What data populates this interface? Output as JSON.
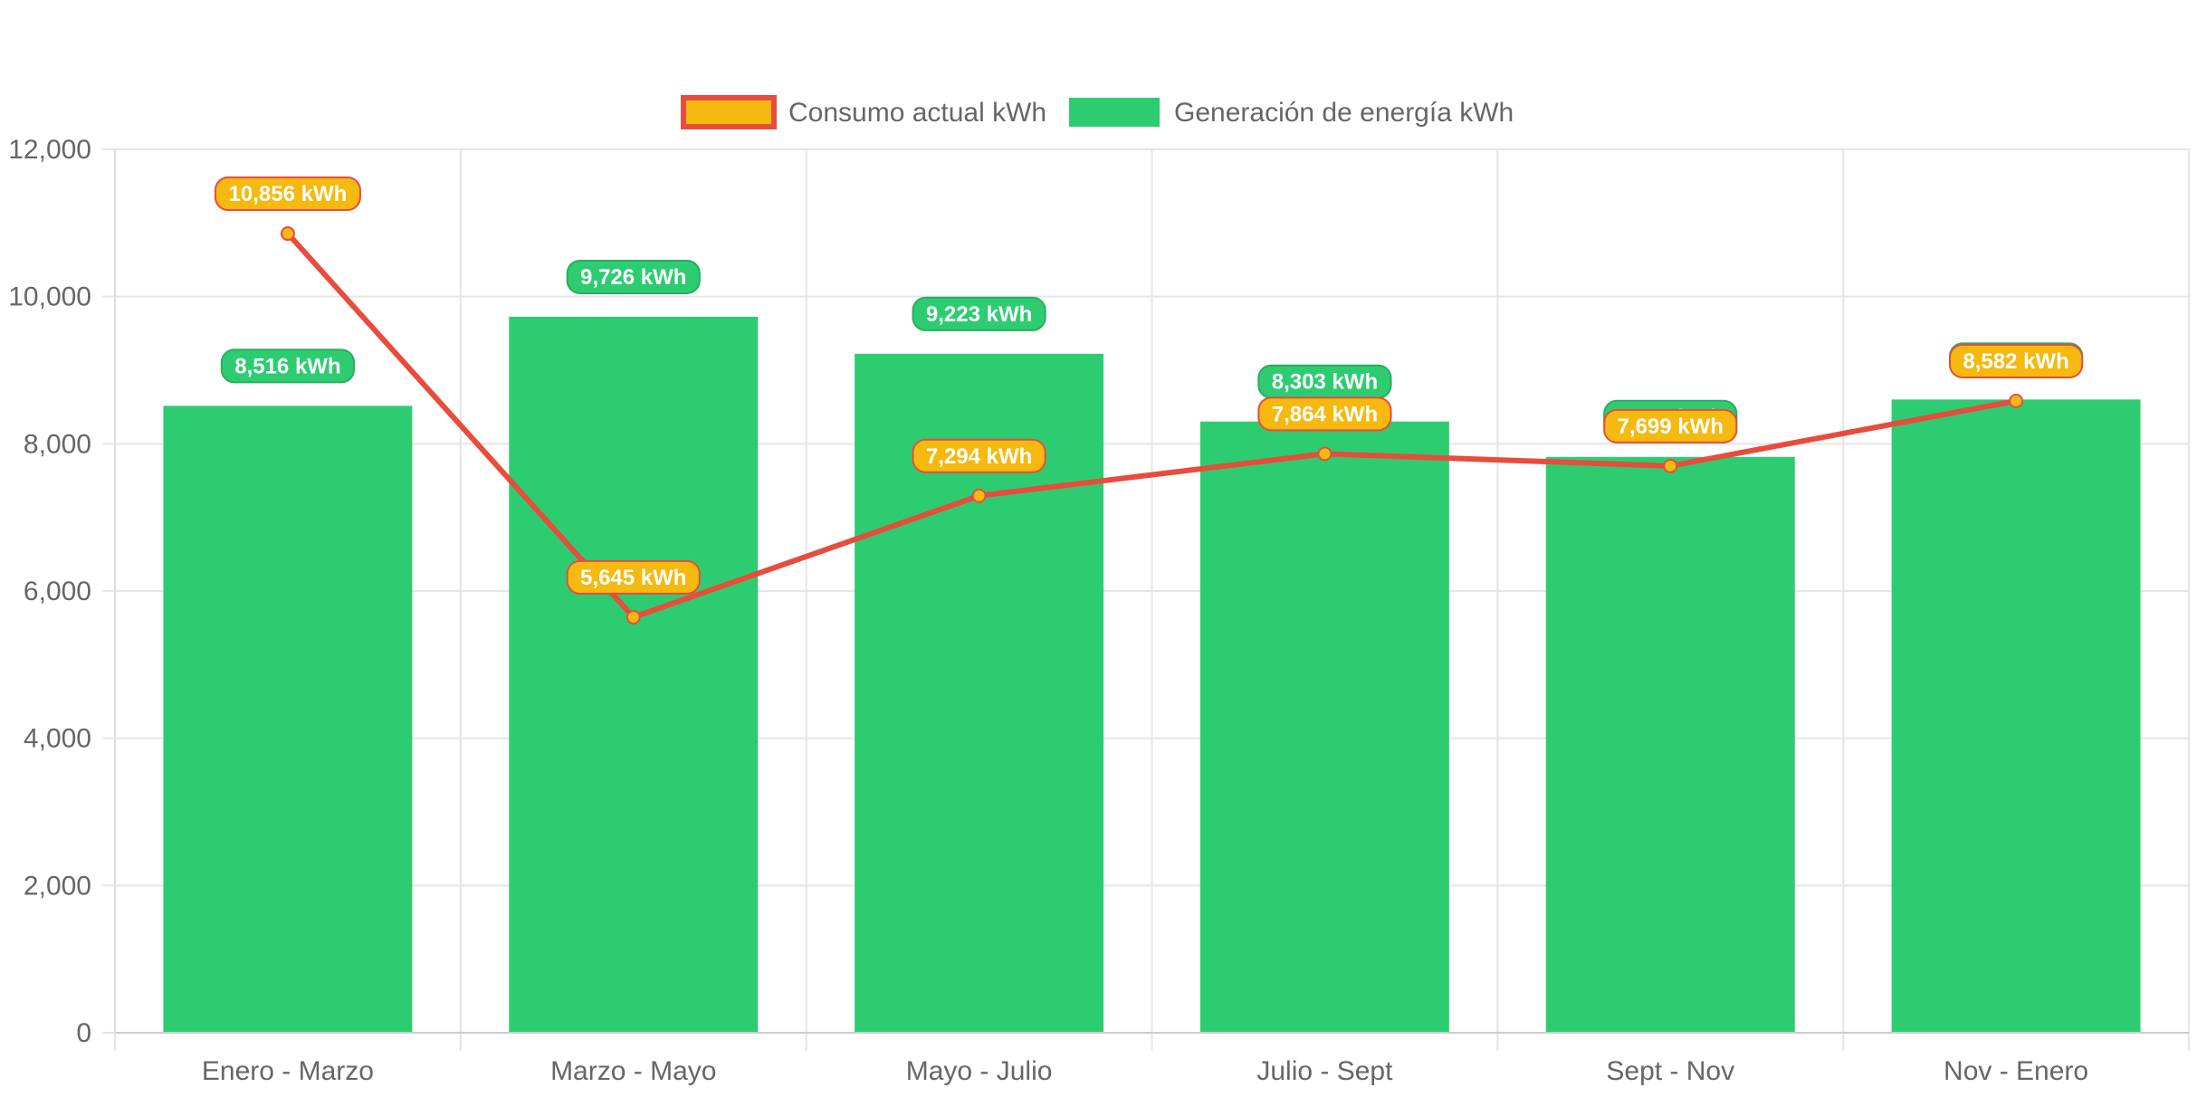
{
  "chart_data": {
    "type": "bar",
    "title": "",
    "xlabel": "",
    "ylabel": "",
    "categories": [
      "Enero - Marzo",
      "Marzo - Mayo",
      "Mayo - Julio",
      "Julio - Sept",
      "Sept - Nov",
      "Nov - Enero"
    ],
    "ylim": [
      0,
      12000
    ],
    "y_ticks": [
      0,
      2000,
      4000,
      6000,
      8000,
      10000,
      12000
    ],
    "y_tick_labels": [
      "0",
      "2,000",
      "4,000",
      "6,000",
      "8,000",
      "10,000",
      "12,000"
    ],
    "grid": true,
    "legend_position": "top-center",
    "series": [
      {
        "name": "Consumo actual kWh",
        "type": "line",
        "values": [
          10856,
          5645,
          7294,
          7864,
          7699,
          8582
        ],
        "labels": [
          "10,856 kWh",
          "5,645 kWh",
          "7,294 kWh",
          "7,864 kWh",
          "7,699 kWh",
          "8,582 kWh"
        ],
        "color": "#e74c3c",
        "fill_color": "#f5b90f"
      },
      {
        "name": "Generación de energía kWh",
        "type": "bar",
        "values": [
          8516,
          9726,
          9223,
          8303,
          7822,
          8602
        ],
        "labels": [
          "8,516 kWh",
          "9,726 kWh",
          "9,223 kWh",
          "8,303 kWh",
          "7,822 kWh",
          "8,602 kWh"
        ],
        "color": "#2ecc71",
        "border_color": "#27ae60"
      }
    ]
  }
}
